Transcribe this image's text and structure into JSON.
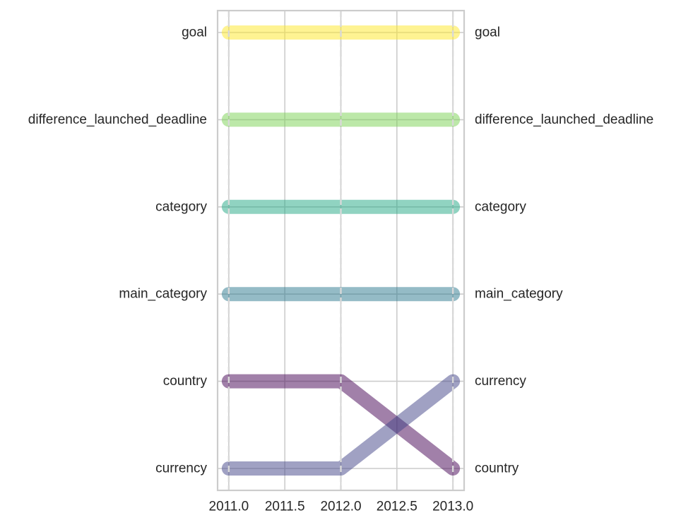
{
  "chart_data": {
    "type": "line",
    "x": [
      2011.0,
      2012.0,
      2013.0
    ],
    "xlim": [
      2010.9,
      2013.1
    ],
    "xticks": [
      2011.0,
      2011.5,
      2012.0,
      2012.5,
      2013.0
    ],
    "xtick_labels": [
      "2011.0",
      "2011.5",
      "2012.0",
      "2012.5",
      "2013.0"
    ],
    "ranks_top_to_bottom": 6,
    "left_labels": [
      "goal",
      "difference_launched_deadline",
      "category",
      "main_category",
      "country",
      "currency"
    ],
    "right_labels": [
      "goal",
      "difference_launched_deadline",
      "category",
      "main_category",
      "currency",
      "country"
    ],
    "series": [
      {
        "label": "goal",
        "ranks": [
          1,
          1,
          1
        ],
        "color": "#fde725"
      },
      {
        "label": "difference_launched_deadline",
        "ranks": [
          2,
          2,
          2
        ],
        "color": "#7ad151"
      },
      {
        "label": "category",
        "ranks": [
          3,
          3,
          3
        ],
        "color": "#22a884"
      },
      {
        "label": "main_category",
        "ranks": [
          4,
          4,
          4
        ],
        "color": "#2a788e"
      },
      {
        "label": "country",
        "ranks": [
          5,
          5,
          6
        ],
        "color": "#440154"
      },
      {
        "label": "currency",
        "ranks": [
          6,
          6,
          5
        ],
        "color": "#414487"
      }
    ],
    "grid": true,
    "title": "",
    "xlabel": "",
    "ylabel": ""
  }
}
